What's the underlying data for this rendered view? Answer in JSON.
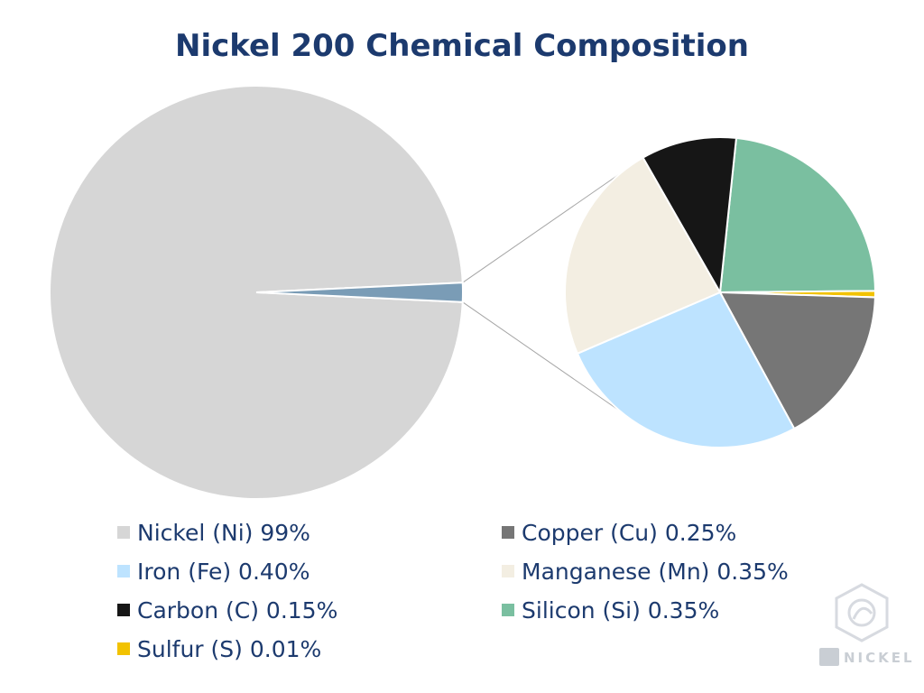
{
  "chart_data": {
    "type": "pie",
    "subtype": "pie-of-pie",
    "title": "Nickel 200 Chemical Composition",
    "main_pie": {
      "slices": [
        {
          "key": "ni",
          "value": 99,
          "color": "#d6d6d6"
        },
        {
          "key": "other",
          "value": 1.51,
          "color": "#7a9cb6"
        }
      ]
    },
    "secondary_pie": {
      "slices": [
        {
          "key": "si",
          "value": 0.35,
          "color": "#7abfa0"
        },
        {
          "key": "s",
          "value": 0.01,
          "color": "#f2c200"
        },
        {
          "key": "cu",
          "value": 0.25,
          "color": "#767676"
        },
        {
          "key": "fe",
          "value": 0.4,
          "color": "#bde3ff"
        },
        {
          "key": "mn",
          "value": 0.35,
          "color": "#f3eee2"
        },
        {
          "key": "c",
          "value": 0.15,
          "color": "#161616"
        }
      ]
    },
    "legend": {
      "items": [
        {
          "key": "ni",
          "label": "Nickel (Ni) 99%",
          "color": "#d6d6d6"
        },
        {
          "key": "cu",
          "label": "Copper (Cu) 0.25%",
          "color": "#767676"
        },
        {
          "key": "fe",
          "label": "Iron (Fe) 0.40%",
          "color": "#bde3ff"
        },
        {
          "key": "mn",
          "label": "Manganese (Mn) 0.35%",
          "color": "#f3eee2"
        },
        {
          "key": "c",
          "label": "Carbon (C) 0.15%",
          "color": "#161616"
        },
        {
          "key": "si",
          "label": "Silicon (Si) 0.35%",
          "color": "#7abfa0"
        },
        {
          "key": "s",
          "label": "Sulfur (S) 0.01%",
          "color": "#f2c200"
        }
      ]
    }
  },
  "watermark": {
    "text": "NICKEL",
    "icon": "nickel-logo-icon"
  }
}
